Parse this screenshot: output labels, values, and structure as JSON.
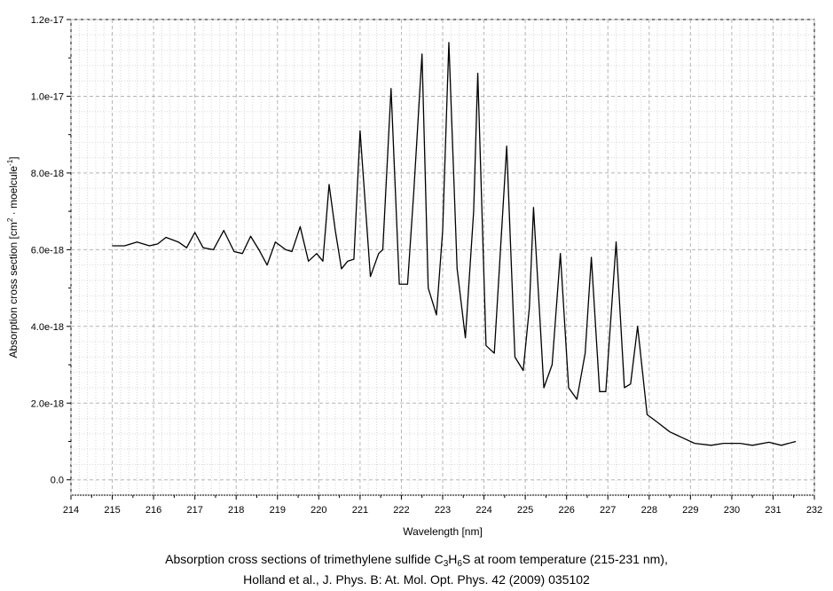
{
  "chart_data": {
    "type": "line",
    "xlabel": "Wavelength [nm]",
    "ylabel_parts": {
      "a": "Absorption cross section [cm",
      "b": "2",
      "c": " · moelcule",
      "d": "-1",
      "e": "]"
    },
    "xlim": [
      214,
      232
    ],
    "ylim": [
      -4e-19,
      1.2e-17
    ],
    "xticks": [
      "214",
      "215",
      "216",
      "217",
      "218",
      "219",
      "220",
      "221",
      "222",
      "223",
      "224",
      "225",
      "226",
      "227",
      "228",
      "229",
      "230",
      "231",
      "232"
    ],
    "yticks": [
      {
        "value": 0,
        "label": "0.0"
      },
      {
        "value": 2e-18,
        "label": "2.0e-18"
      },
      {
        "value": 4e-18,
        "label": "4.0e-18"
      },
      {
        "value": 6e-18,
        "label": "6.0e-18"
      },
      {
        "value": 8e-18,
        "label": "8.0e-18"
      },
      {
        "value": 1e-17,
        "label": "1.0e-17"
      },
      {
        "value": 1.2e-17,
        "label": "1.2e-17"
      }
    ],
    "grid": true,
    "legend": "none",
    "line_color": "#000000",
    "series": [
      {
        "x": [
          215.0,
          215.3,
          215.6,
          215.9,
          216.1,
          216.3,
          216.6,
          216.8,
          217.0,
          217.2,
          217.45,
          217.7,
          217.95,
          218.15,
          218.35,
          218.55,
          218.75,
          218.95,
          219.2,
          219.35,
          219.55,
          219.75,
          219.95,
          220.1,
          220.25,
          220.4,
          220.55,
          220.7,
          220.85,
          221.0,
          221.25,
          221.45,
          221.55,
          221.75,
          221.95,
          222.15,
          222.3,
          222.5,
          222.65,
          222.85,
          223.0,
          223.15,
          223.35,
          223.55,
          223.75,
          223.85,
          224.05,
          224.25,
          224.4,
          224.55,
          224.75,
          224.95,
          225.1,
          225.2,
          225.45,
          225.65,
          225.85,
          226.05,
          226.25,
          226.45,
          226.6,
          226.8,
          226.95,
          227.2,
          227.4,
          227.55,
          227.72,
          227.95,
          228.2,
          228.5,
          228.8,
          229.1,
          229.5,
          229.8,
          230.2,
          230.5,
          230.9,
          231.2,
          231.55
        ],
        "y": [
          6.1e-18,
          6.1e-18,
          6.2e-18,
          6.1e-18,
          6.15e-18,
          6.32e-18,
          6.2e-18,
          6.05e-18,
          6.45e-18,
          6.05e-18,
          6e-18,
          6.5e-18,
          5.95e-18,
          5.9e-18,
          6.35e-18,
          6e-18,
          5.6e-18,
          6.2e-18,
          6e-18,
          5.95e-18,
          6.6e-18,
          5.7e-18,
          5.9e-18,
          5.7e-18,
          7.7e-18,
          6.5e-18,
          5.5e-18,
          5.7e-18,
          5.75e-18,
          9.1e-18,
          5.3e-18,
          5.9e-18,
          6e-18,
          1.02e-17,
          5.1e-18,
          5.1e-18,
          7.5e-18,
          1.11e-17,
          5e-18,
          4.3e-18,
          6.5e-18,
          1.14e-17,
          5.5e-18,
          3.7e-18,
          7e-18,
          1.06e-17,
          3.5e-18,
          3.3e-18,
          6e-18,
          8.7e-18,
          3.2e-18,
          2.85e-18,
          4.5e-18,
          7.1e-18,
          2.4e-18,
          3e-18,
          5.9e-18,
          2.4e-18,
          2.1e-18,
          3.3e-18,
          5.8e-18,
          2.3e-18,
          2.3e-18,
          6.2e-18,
          2.4e-18,
          2.5e-18,
          4e-18,
          1.7e-18,
          1.5e-18,
          1.25e-18,
          1.1e-18,
          9.5e-19,
          9e-19,
          9.5e-19,
          9.5e-19,
          9e-19,
          9.8e-19,
          9e-19,
          1e-18
        ]
      }
    ]
  },
  "caption": {
    "line1_a": "Absorption cross sections of trimethylene sulfide C",
    "sub1": "3",
    "line1_b": "H",
    "sub2": "6",
    "line1_c": "S at room temperature (215-231 nm),",
    "line2": "Holland et al., J. Phys. B: At. Mol. Opt. Phys. 42 (2009) 035102"
  }
}
